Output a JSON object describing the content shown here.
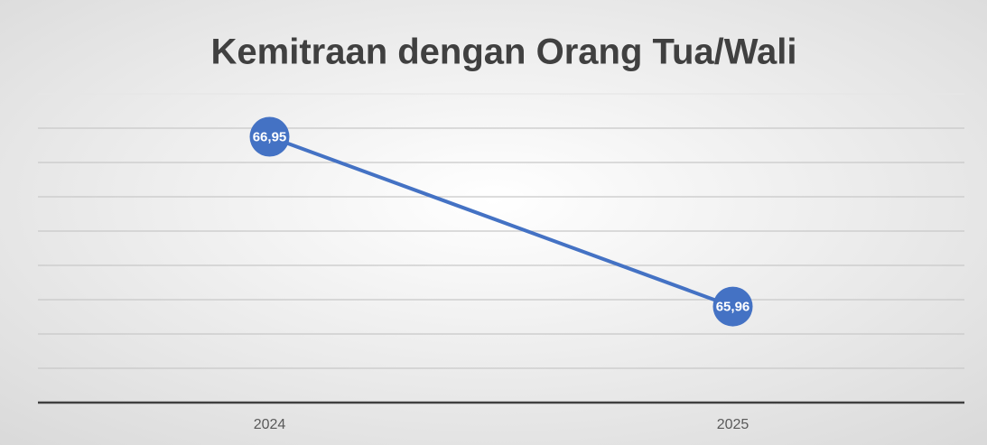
{
  "chart_data": {
    "type": "line",
    "title": "Kemitraan dengan Orang Tua/Wali",
    "categories": [
      "2024",
      "2025"
    ],
    "values": [
      66.95,
      65.96
    ],
    "value_labels": [
      "66,95",
      "65,96"
    ],
    "color": "#4472c4",
    "ylim": [
      65.4,
      67.2
    ],
    "yticks": [
      65.4,
      65.6,
      65.8,
      66.0,
      66.2,
      66.4,
      66.6,
      66.8,
      67.0,
      67.2
    ],
    "grid": true
  }
}
